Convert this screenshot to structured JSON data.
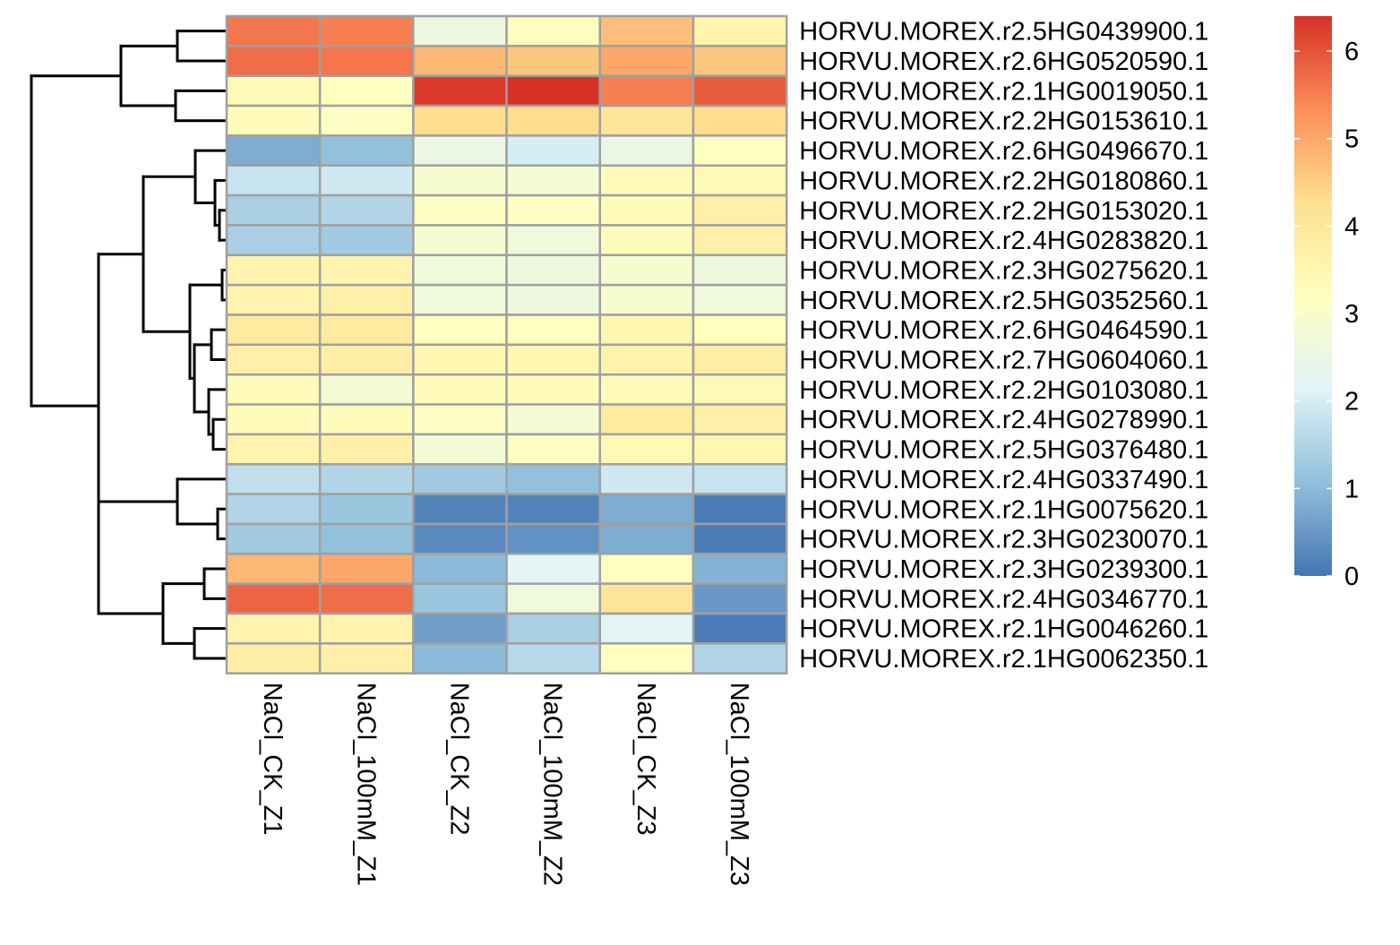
{
  "chart_data": {
    "type": "heatmap",
    "title": "",
    "columns": [
      "NaCl_CK_Z1",
      "NaCl_100mM_Z1",
      "NaCl_CK_Z2",
      "NaCl_100mM_Z2",
      "NaCl_CK_Z3",
      "NaCl_100mM_Z3"
    ],
    "rows": [
      "HORVU.MOREX.r2.5HG0439900.1",
      "HORVU.MOREX.r2.6HG0520590.1",
      "HORVU.MOREX.r2.1HG0019050.1",
      "HORVU.MOREX.r2.2HG0153610.1",
      "HORVU.MOREX.r2.6HG0496670.1",
      "HORVU.MOREX.r2.2HG0180860.1",
      "HORVU.MOREX.r2.2HG0153020.1",
      "HORVU.MOREX.r2.4HG0283820.1",
      "HORVU.MOREX.r2.3HG0275620.1",
      "HORVU.MOREX.r2.5HG0352560.1",
      "HORVU.MOREX.r2.6HG0464590.1",
      "HORVU.MOREX.r2.7HG0604060.1",
      "HORVU.MOREX.r2.2HG0103080.1",
      "HORVU.MOREX.r2.4HG0278990.1",
      "HORVU.MOREX.r2.5HG0376480.1",
      "HORVU.MOREX.r2.4HG0337490.1",
      "HORVU.MOREX.r2.1HG0075620.1",
      "HORVU.MOREX.r2.3HG0230070.1",
      "HORVU.MOREX.r2.3HG0239300.1",
      "HORVU.MOREX.r2.4HG0346770.1",
      "HORVU.MOREX.r2.1HG0046260.1",
      "HORVU.MOREX.r2.1HG0062350.1"
    ],
    "values": [
      [
        5.6,
        5.5,
        2.6,
        3.2,
        4.7,
        3.6
      ],
      [
        5.7,
        5.6,
        4.8,
        4.6,
        5.0,
        4.6
      ],
      [
        3.4,
        3.2,
        6.3,
        6.4,
        5.5,
        5.9
      ],
      [
        3.3,
        3.1,
        4.3,
        4.3,
        4.1,
        4.3
      ],
      [
        0.8,
        1.1,
        2.5,
        2.0,
        2.5,
        3.2
      ],
      [
        1.8,
        1.9,
        2.9,
        2.8,
        3.3,
        3.4
      ],
      [
        1.4,
        1.5,
        3.1,
        3.1,
        3.3,
        3.7
      ],
      [
        1.4,
        1.3,
        2.9,
        2.7,
        3.3,
        3.7
      ],
      [
        3.6,
        3.6,
        2.7,
        2.6,
        2.9,
        2.6
      ],
      [
        3.6,
        3.7,
        2.7,
        2.6,
        2.9,
        2.7
      ],
      [
        3.9,
        3.9,
        3.2,
        3.2,
        3.5,
        3.2
      ],
      [
        3.7,
        3.8,
        3.5,
        3.5,
        3.6,
        3.8
      ],
      [
        3.3,
        2.8,
        3.3,
        3.3,
        3.3,
        3.4
      ],
      [
        3.3,
        3.3,
        3.1,
        2.8,
        3.9,
        3.7
      ],
      [
        3.6,
        3.7,
        2.8,
        3.1,
        3.4,
        3.5
      ],
      [
        1.7,
        1.5,
        1.3,
        1.1,
        1.9,
        1.8
      ],
      [
        1.5,
        1.2,
        0.2,
        0.2,
        0.8,
        0.1
      ],
      [
        1.3,
        1.1,
        0.3,
        0.4,
        0.8,
        0.1
      ],
      [
        4.8,
        5.0,
        1.0,
        2.2,
        3.2,
        0.9
      ],
      [
        5.8,
        5.7,
        1.2,
        2.7,
        4.1,
        0.5
      ],
      [
        3.6,
        3.6,
        0.6,
        1.4,
        2.2,
        0.1
      ],
      [
        3.8,
        3.7,
        1.0,
        1.6,
        3.2,
        1.5
      ]
    ],
    "color_scale": {
      "min": 0,
      "max": 6.4,
      "colors": [
        "#4575B4",
        "#91BFDB",
        "#E0F3F8",
        "#FFFFBF",
        "#FEE090",
        "#FC8D59",
        "#D73027"
      ]
    },
    "legend": {
      "position": "right",
      "ticks": [
        "0",
        "1",
        "2",
        "3",
        "4",
        "5",
        "6"
      ]
    },
    "cell_border_color": "#A0A0A0",
    "row_dendrogram": true,
    "column_dendrogram": false
  }
}
